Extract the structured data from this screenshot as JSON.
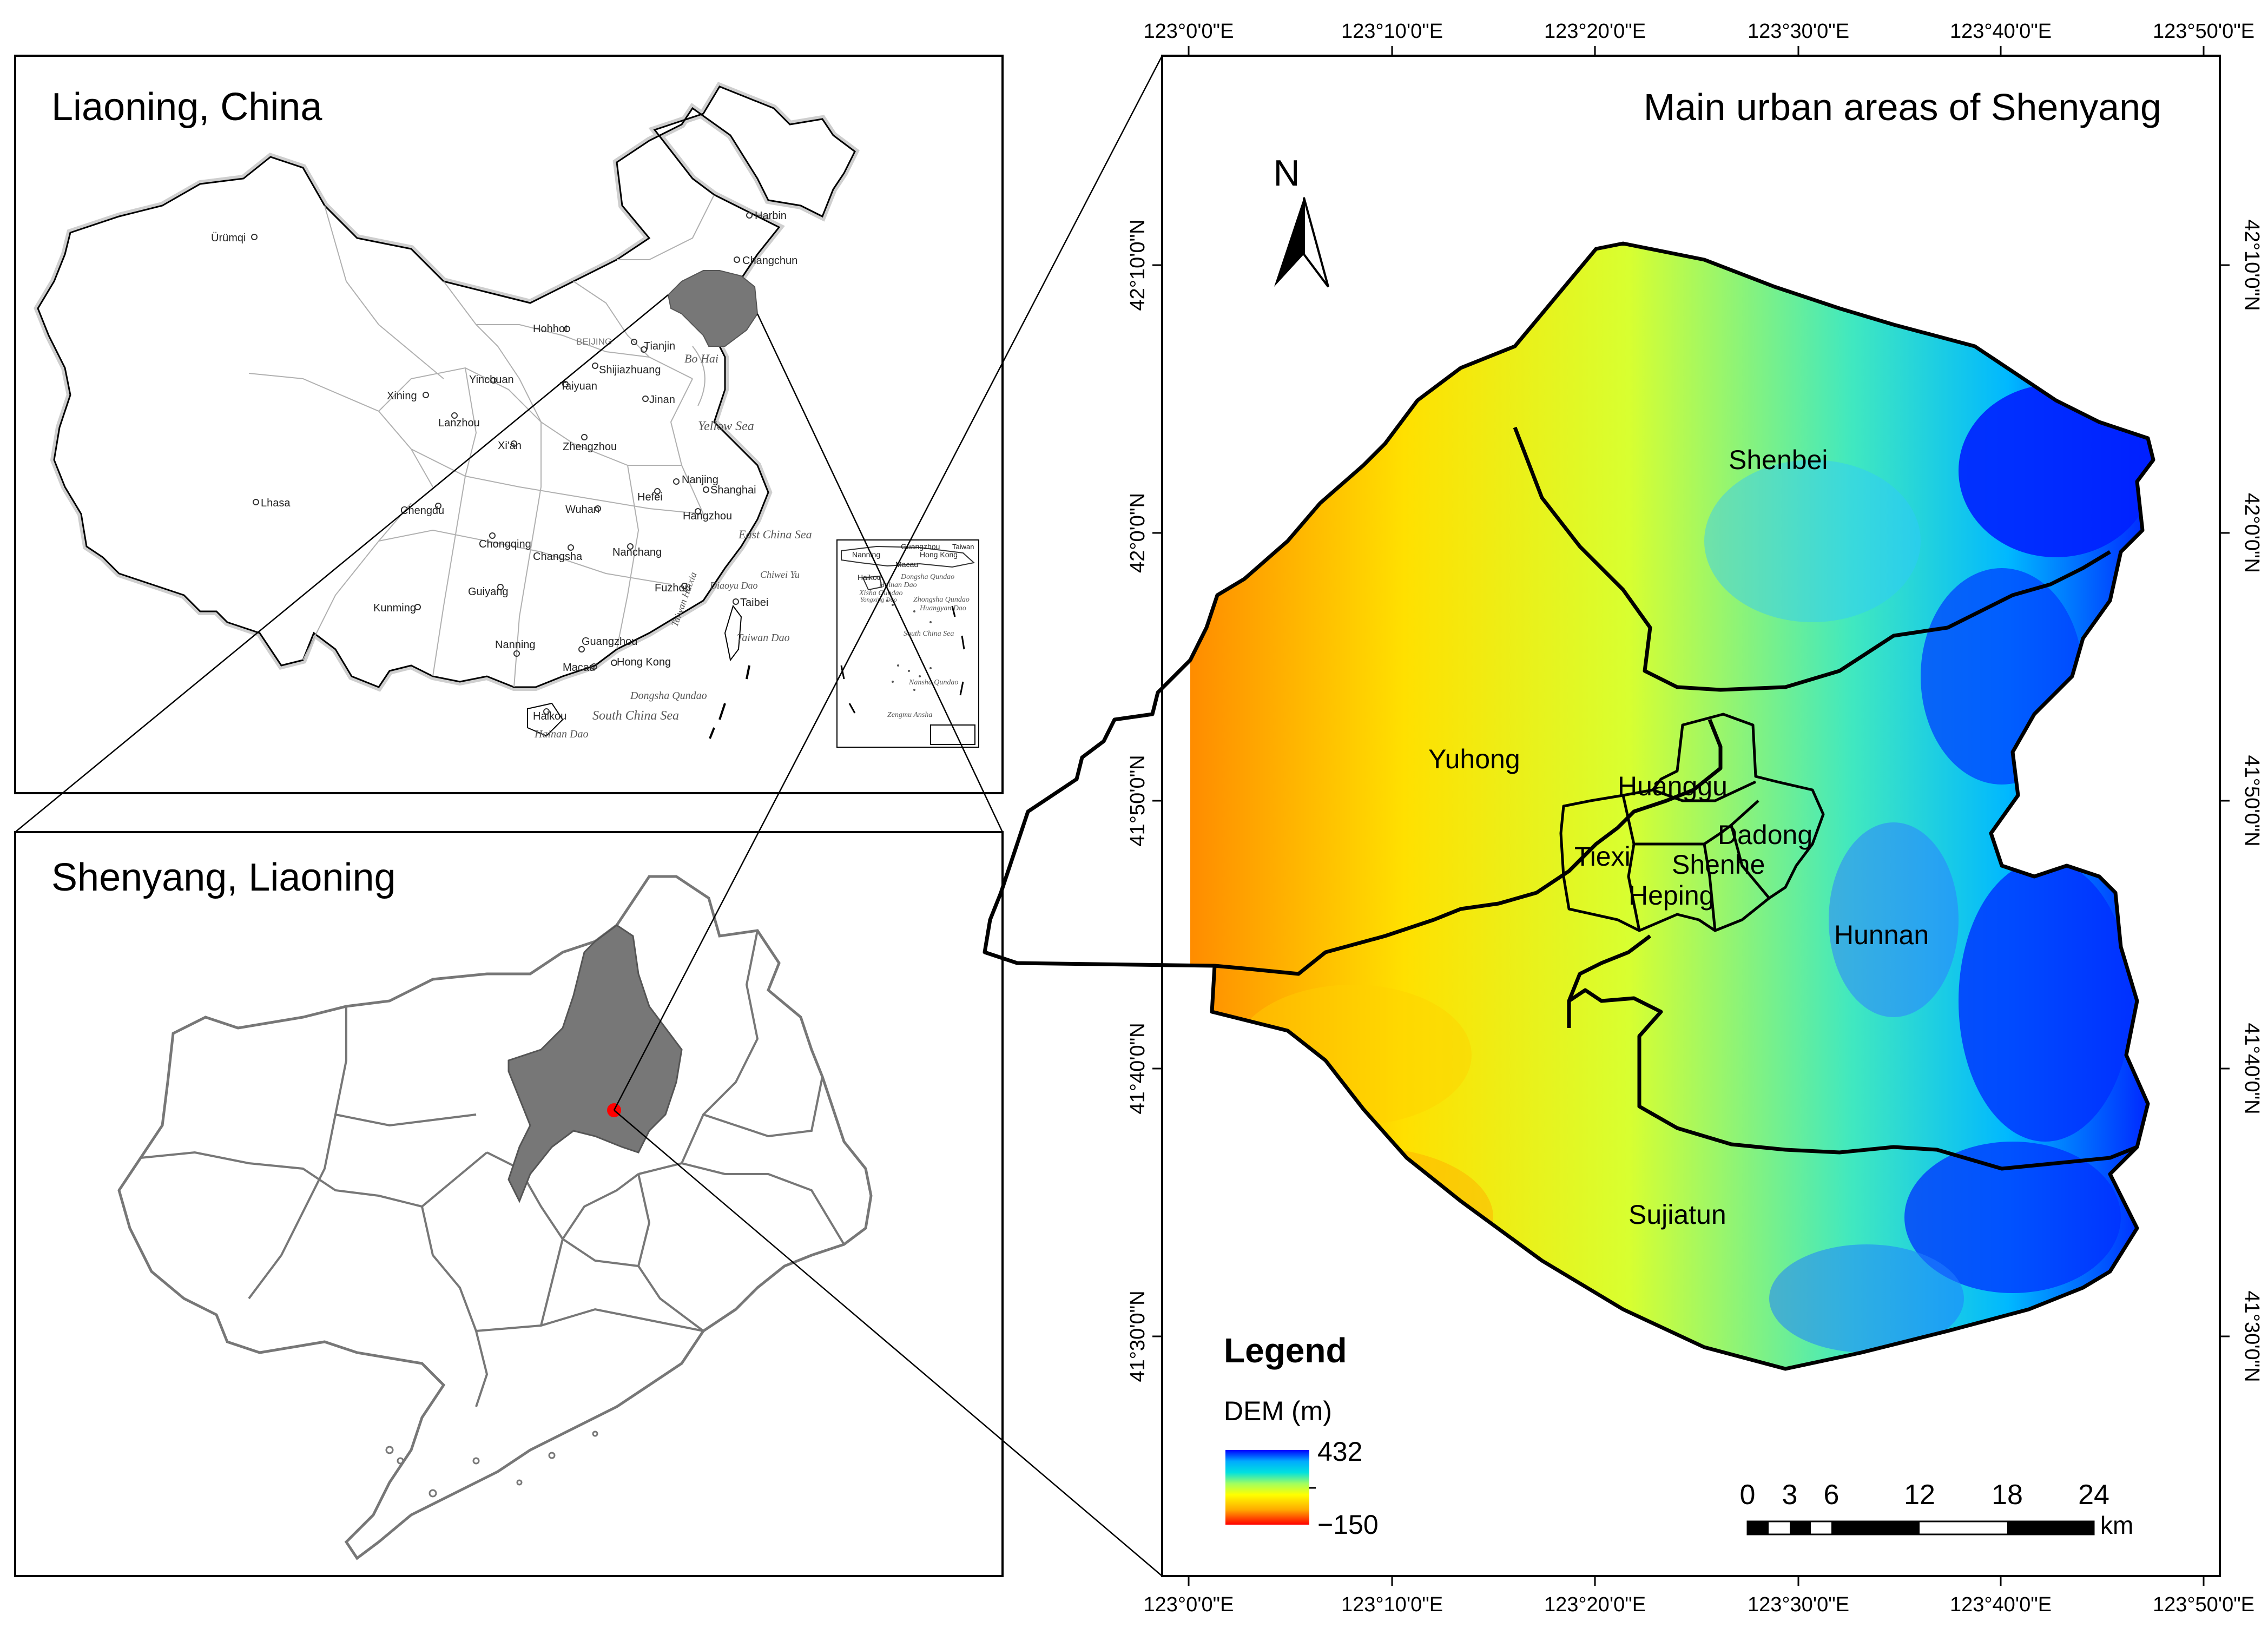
{
  "panels": {
    "china_title": "Liaoning, China",
    "liaoning_title": "Shenyang, Liaoning",
    "main_title": "Main urban areas of Shenyang"
  },
  "china_map": {
    "cities": [
      {
        "name": "Harbin"
      },
      {
        "name": "Changchun"
      },
      {
        "name": "Ürümqi"
      },
      {
        "name": "Hohhot"
      },
      {
        "name": "BEIJING"
      },
      {
        "name": "Tianjin"
      },
      {
        "name": "Yinchuan"
      },
      {
        "name": "Taiyuan"
      },
      {
        "name": "Shijiazhuang"
      },
      {
        "name": "Xining"
      },
      {
        "name": "Lanzhou"
      },
      {
        "name": "Jinan"
      },
      {
        "name": "Xi'an"
      },
      {
        "name": "Zhengzhou"
      },
      {
        "name": "Nanjing"
      },
      {
        "name": "Shanghai"
      },
      {
        "name": "Hefei"
      },
      {
        "name": "Lhasa"
      },
      {
        "name": "Chengdu"
      },
      {
        "name": "Wuhan"
      },
      {
        "name": "Hangzhou"
      },
      {
        "name": "Chongqing"
      },
      {
        "name": "Changsha"
      },
      {
        "name": "Nanchang"
      },
      {
        "name": "Fuzhou"
      },
      {
        "name": "Guiyang"
      },
      {
        "name": "Taibei"
      },
      {
        "name": "Kunming"
      },
      {
        "name": "Nanning"
      },
      {
        "name": "Guangzhou"
      },
      {
        "name": "Macau"
      },
      {
        "name": "Hong Kong"
      },
      {
        "name": "Haikou"
      }
    ],
    "waters": [
      "Bo Hai",
      "Yellow Sea",
      "East China Sea",
      "South China Sea",
      "Taiwan Haixia",
      "Chiwei Yu",
      "Diaoyu Dao",
      "Taiwan Dao",
      "Dongsha Qundao",
      "Hainan Dao"
    ],
    "inset_labels": [
      "Nanning",
      "Guangzhou",
      "Taiwan",
      "Macau",
      "Hong Kong",
      "Haikou",
      "Hainan Dao",
      "Dongsha Qundao",
      "Xisha Qundao",
      "Zhongsha Qundao",
      "Huangyan Dao",
      "Yongxing Dao",
      "South China Sea",
      "Nansha Qundao",
      "Zengmu Ansha"
    ],
    "highlight": "Liaoning"
  },
  "districts": [
    {
      "name": "Shenbei"
    },
    {
      "name": "Yuhong"
    },
    {
      "name": "Huanggu"
    },
    {
      "name": "Dadong"
    },
    {
      "name": "Tiexi"
    },
    {
      "name": "Shenhe"
    },
    {
      "name": "Heping"
    },
    {
      "name": "Hunnan"
    },
    {
      "name": "Sujiatun"
    }
  ],
  "north_arrow": "N",
  "axes": {
    "lon_ticks": [
      "123°0'0\"E",
      "123°10'0\"E",
      "123°20'0\"E",
      "123°30'0\"E",
      "123°40'0\"E",
      "123°50'0\"E"
    ],
    "lat_ticks": [
      "42°10'0\"N",
      "42°0'0\"N",
      "41°50'0\"N",
      "41°40'0\"N",
      "41°30'0\"N"
    ]
  },
  "legend": {
    "title": "Legend",
    "field": "DEM (m)",
    "max": "432",
    "min": "−150",
    "colors": [
      "#0000ff",
      "#00aaff",
      "#00e0e0",
      "#a0ff60",
      "#ffff00",
      "#ffaa00",
      "#ff0000"
    ]
  },
  "scalebar": {
    "ticks": [
      "0",
      "3",
      "6",
      "12",
      "18",
      "24"
    ],
    "unit": "km"
  },
  "colors": {
    "highlight_gray": "#777777",
    "marker_red": "#ff0000"
  }
}
